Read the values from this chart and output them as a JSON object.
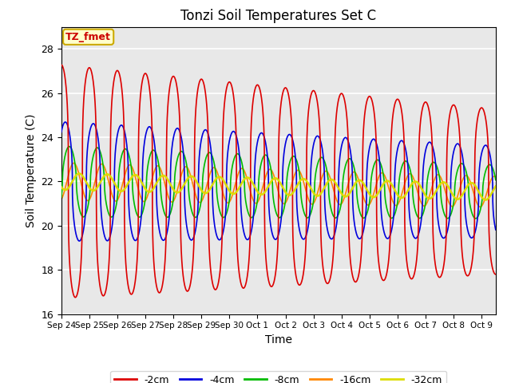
{
  "title": "Tonzi Soil Temperatures Set C",
  "xlabel": "Time",
  "ylabel": "Soil Temperature (C)",
  "ylim": [
    16,
    29
  ],
  "background_color": "#e8e8e8",
  "annotation_text": "TZ_fmet",
  "annotation_color": "#cc0000",
  "annotation_bg": "#ffffcc",
  "annotation_border": "#ccaa00",
  "series": {
    "-2cm": {
      "color": "#dd0000",
      "lw": 1.2
    },
    "-4cm": {
      "color": "#0000dd",
      "lw": 1.2
    },
    "-8cm": {
      "color": "#00bb00",
      "lw": 1.2
    },
    "-16cm": {
      "color": "#ff8800",
      "lw": 1.2
    },
    "-32cm": {
      "color": "#dddd00",
      "lw": 1.8
    }
  },
  "tick_labels": [
    "Sep 24",
    "Sep 25",
    "Sep 26",
    "Sep 27",
    "Sep 28",
    "Sep 29",
    "Sep 30",
    "Oct 1",
    "Oct 2",
    "Oct 3",
    "Oct 4",
    "Oct 5",
    "Oct 6",
    "Oct 7",
    "Oct 8",
    "Oct 9"
  ],
  "yticks": [
    16,
    18,
    20,
    22,
    24,
    26,
    28
  ]
}
